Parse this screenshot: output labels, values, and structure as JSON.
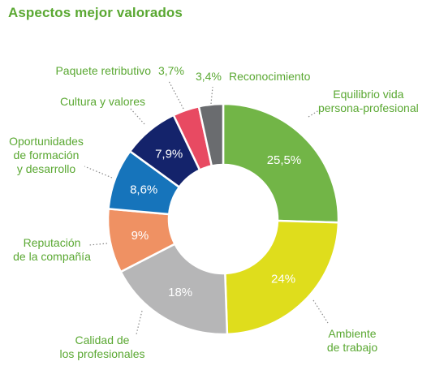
{
  "title": "Aspectos mejor valorados",
  "chart_data": {
    "type": "pie",
    "title": "Aspectos mejor valorados",
    "slices": [
      {
        "label": "Equilibrio vida persona-profesional",
        "value_label": "25,5%",
        "value": 25.5,
        "color": "#72b547"
      },
      {
        "label": "Ambiente de trabajo",
        "value_label": "24%",
        "value": 24.0,
        "color": "#dfdd1c"
      },
      {
        "label": "Calidad de los profesionales",
        "value_label": "18%",
        "value": 18.0,
        "color": "#b6b6b7"
      },
      {
        "label": "Reputación de la compañía",
        "value_label": "9%",
        "value": 9.0,
        "color": "#ef9163"
      },
      {
        "label": "Oportunidades de formación y desarrollo",
        "value_label": "8,6%",
        "value": 8.6,
        "color": "#1674bb"
      },
      {
        "label": "Cultura y valores",
        "value_label": "7,9%",
        "value": 7.9,
        "color": "#14236b"
      },
      {
        "label": "Paquete retributivo",
        "value_label": "3,7%",
        "value": 3.7,
        "color": "#e84a62"
      },
      {
        "label": "Reconocimiento",
        "value_label": "3,4%",
        "value": 3.4,
        "color": "#6a6c6f"
      }
    ]
  }
}
